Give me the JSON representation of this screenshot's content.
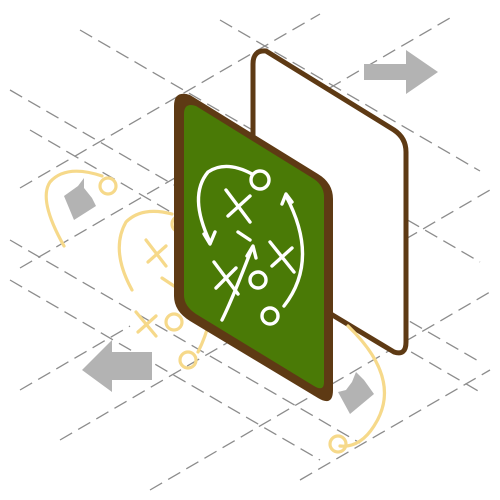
{
  "colors": {
    "background": "#ffffff",
    "grid_line": "#8c8c8c",
    "board_frame": "#5e3a14",
    "board_surface": "#4a7a06",
    "chalk": "#ffffff",
    "ghost_stroke": "#f6d98a",
    "arrow_fill": "#b3b3b3"
  },
  "icons": [
    "isometric-grid",
    "empty-whiteboard-frame",
    "green-chalkboard",
    "strategy-play-drawing",
    "ghost-play-projection",
    "direction-arrow"
  ]
}
